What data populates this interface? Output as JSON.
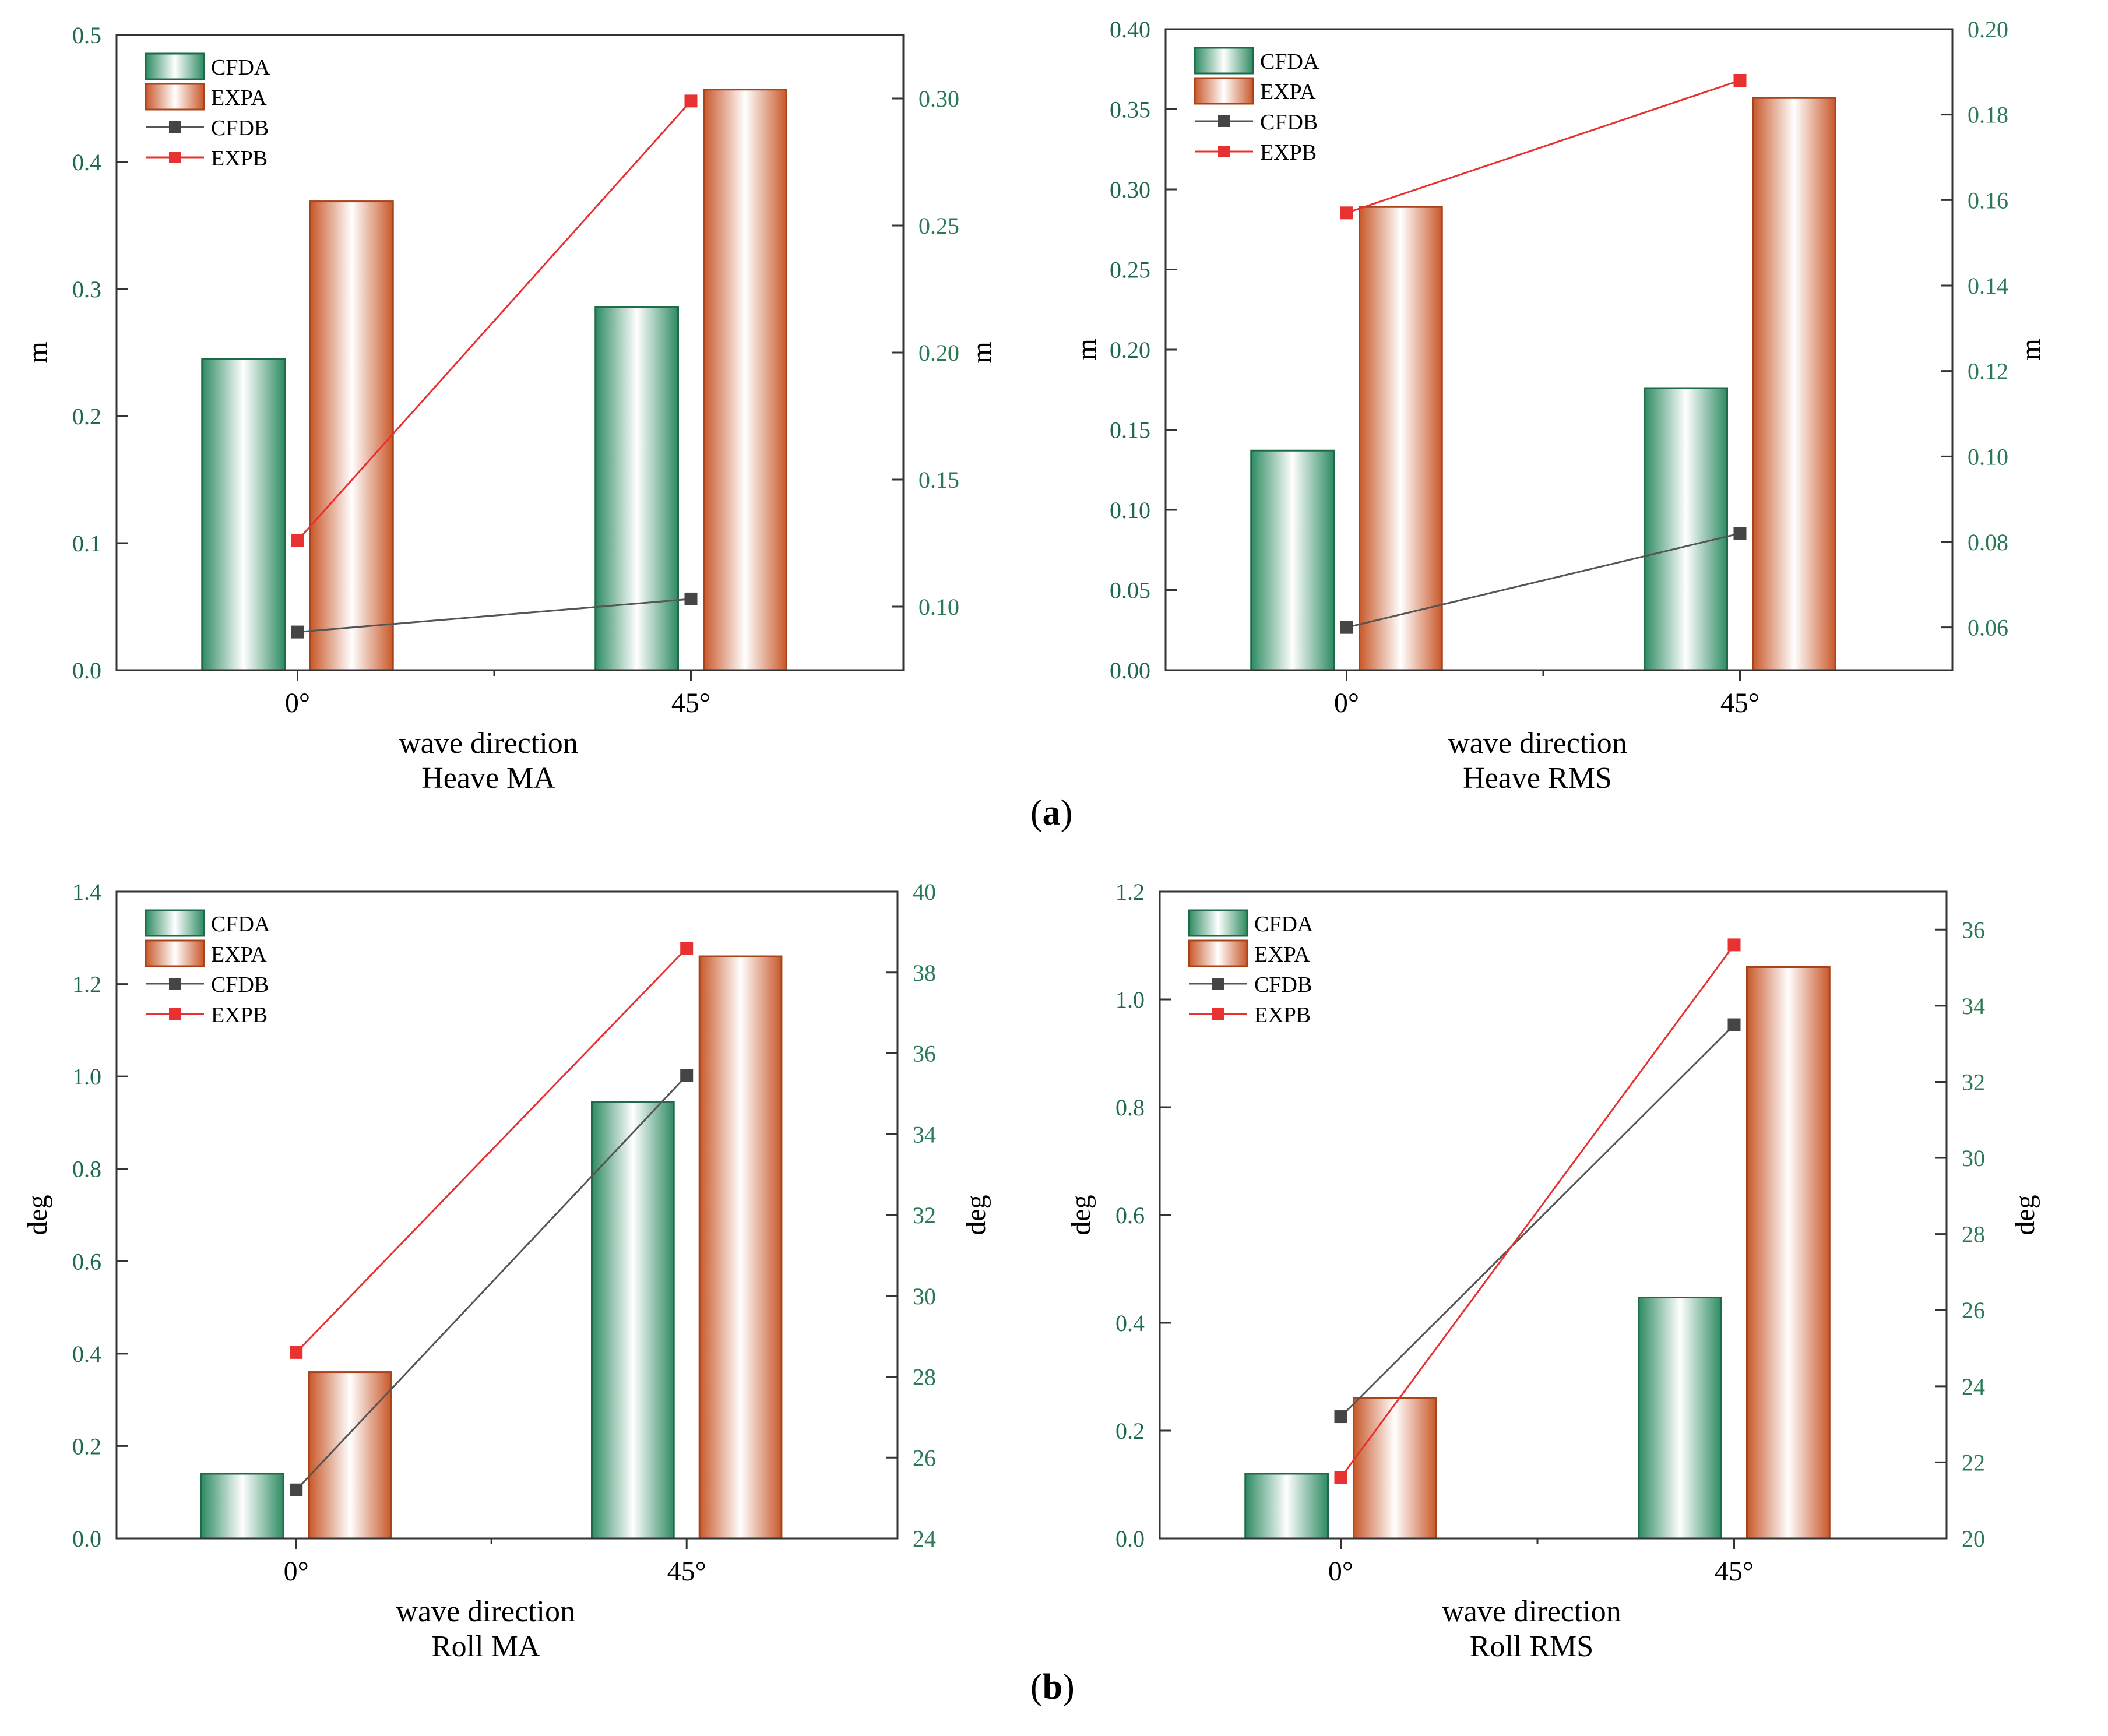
{
  "figure": {
    "label_a": "a",
    "label_b": "b",
    "colors": {
      "cfda_edge": "#1e6b4a",
      "cfda_fill": "#2e8b62",
      "expa_edge": "#a8441c",
      "expa_fill": "#c9582a",
      "cfdb_line": "#555555",
      "cfdb_marker": "#454545",
      "expb_line": "#e83030",
      "expb_marker": "#e83232",
      "left_tick": "#1e6b4a",
      "right_tick": "#2a7a56",
      "axis": "#333333"
    }
  },
  "chart_data": [
    {
      "type": "bar",
      "id": "heave-ma",
      "title": "Heave MA",
      "xlabel": "wave direction",
      "ylabel": "m",
      "ylabel_right": "m",
      "categories": [
        "0°",
        "45°"
      ],
      "series": [
        {
          "name": "CFDA",
          "kind": "bar",
          "axis": "left",
          "values": [
            0.245,
            0.286
          ]
        },
        {
          "name": "EXPA",
          "kind": "bar",
          "axis": "left",
          "values": [
            0.369,
            0.457
          ]
        },
        {
          "name": "CFDB",
          "kind": "line",
          "axis": "right",
          "values": [
            0.09,
            0.103
          ]
        },
        {
          "name": "EXPB",
          "kind": "line",
          "axis": "right",
          "values": [
            0.126,
            0.299
          ]
        }
      ],
      "ylim": [
        0,
        0.5
      ],
      "yticks": [
        "0.0",
        "0.1",
        "0.2",
        "0.3",
        "0.4",
        "0.5"
      ],
      "ylim_right": [
        0.075,
        0.325
      ],
      "yticks_right": [
        "0.10",
        "0.15",
        "0.20",
        "0.25",
        "0.30"
      ],
      "legend": "top-left"
    },
    {
      "type": "bar",
      "id": "heave-rms",
      "title": "Heave RMS",
      "xlabel": "wave direction",
      "ylabel": "m",
      "ylabel_right": "m",
      "categories": [
        "0°",
        "45°"
      ],
      "series": [
        {
          "name": "CFDA",
          "kind": "bar",
          "axis": "left",
          "values": [
            0.137,
            0.176
          ]
        },
        {
          "name": "EXPA",
          "kind": "bar",
          "axis": "left",
          "values": [
            0.289,
            0.357
          ]
        },
        {
          "name": "CFDB",
          "kind": "line",
          "axis": "right",
          "values": [
            0.06,
            0.082
          ]
        },
        {
          "name": "EXPB",
          "kind": "line",
          "axis": "right",
          "values": [
            0.157,
            0.188
          ]
        }
      ],
      "ylim": [
        0,
        0.4
      ],
      "yticks": [
        "0.00",
        "0.05",
        "0.10",
        "0.15",
        "0.20",
        "0.25",
        "0.30",
        "0.35",
        "0.40"
      ],
      "ylim_right": [
        0.05,
        0.2
      ],
      "yticks_right": [
        "0.06",
        "0.08",
        "0.10",
        "0.12",
        "0.14",
        "0.16",
        "0.18",
        "0.20"
      ],
      "legend": "top-left"
    },
    {
      "type": "bar",
      "id": "roll-ma",
      "title": "Roll MA",
      "xlabel": "wave direction",
      "ylabel": "deg",
      "ylabel_right": "deg",
      "categories": [
        "0°",
        "45°"
      ],
      "series": [
        {
          "name": "CFDA",
          "kind": "bar",
          "axis": "left",
          "values": [
            0.14,
            0.945
          ]
        },
        {
          "name": "EXPA",
          "kind": "bar",
          "axis": "left",
          "values": [
            0.36,
            1.26
          ]
        },
        {
          "name": "CFDB",
          "kind": "line",
          "axis": "right",
          "values": [
            25.2,
            35.45
          ]
        },
        {
          "name": "EXPB",
          "kind": "line",
          "axis": "right",
          "values": [
            28.6,
            38.6
          ]
        }
      ],
      "ylim": [
        0,
        1.4
      ],
      "yticks": [
        "0.0",
        "0.2",
        "0.4",
        "0.6",
        "0.8",
        "1.0",
        "1.2",
        "1.4"
      ],
      "ylim_right": [
        24,
        40
      ],
      "yticks_right": [
        "24",
        "26",
        "28",
        "30",
        "32",
        "34",
        "36",
        "38",
        "40"
      ],
      "legend": "top-left"
    },
    {
      "type": "bar",
      "id": "roll-rms",
      "title": "Roll RMS",
      "xlabel": "wave direction",
      "ylabel": "deg",
      "ylabel_right": "deg",
      "categories": [
        "0°",
        "45°"
      ],
      "series": [
        {
          "name": "CFDA",
          "kind": "bar",
          "axis": "left",
          "values": [
            0.12,
            0.447
          ]
        },
        {
          "name": "EXPA",
          "kind": "bar",
          "axis": "left",
          "values": [
            0.26,
            1.06
          ]
        },
        {
          "name": "CFDB",
          "kind": "line",
          "axis": "right",
          "values": [
            23.2,
            33.5
          ]
        },
        {
          "name": "EXPB",
          "kind": "line",
          "axis": "right",
          "values": [
            21.6,
            35.6
          ]
        }
      ],
      "ylim": [
        0,
        1.2
      ],
      "yticks": [
        "0.0",
        "0.2",
        "0.4",
        "0.6",
        "0.8",
        "1.0",
        "1.2"
      ],
      "ylim_right": [
        20,
        37
      ],
      "yticks_right": [
        "20",
        "22",
        "24",
        "26",
        "28",
        "30",
        "32",
        "34",
        "36"
      ],
      "legend": "top-left"
    }
  ]
}
